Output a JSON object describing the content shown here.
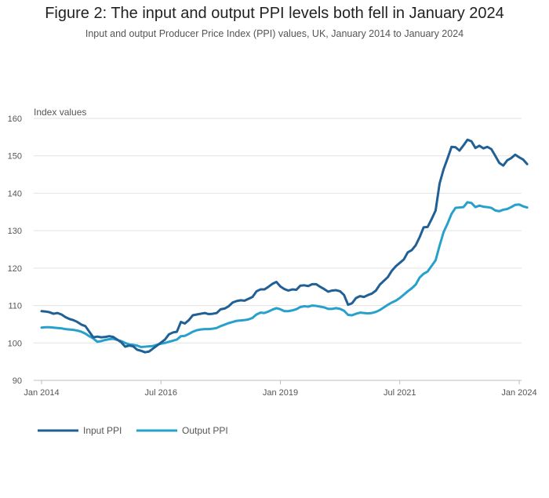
{
  "title": "Figure 2: The input and output PPI levels both fell in January 2024",
  "subtitle": "Input and output Producer Price Index (PPI) values, UK, January 2014 to January 2024",
  "colors": {
    "input": "#206095",
    "output": "#27a0cc",
    "grid": "#e2e2e2",
    "axis": "#bdbdbd"
  },
  "chart_data": {
    "type": "line",
    "title": "Figure 2: The input and output PPI levels both fell in January 2024",
    "ylabel": "Index values",
    "xlabel": "",
    "ylim": [
      90,
      160
    ],
    "yticks": [
      90,
      100,
      110,
      120,
      130,
      140,
      150,
      160
    ],
    "x_start": "Jan 2014",
    "x_end": "Jan 2024",
    "n_points": 121,
    "xticks": [
      {
        "label": "Jan 2014",
        "index": 0
      },
      {
        "label": "Jul 2016",
        "index": 30
      },
      {
        "label": "Jan 2019",
        "index": 60
      },
      {
        "label": "Jul 2021",
        "index": 90
      },
      {
        "label": "Jan 2024",
        "index": 120
      }
    ],
    "legend": [
      "Input PPI",
      "Output PPI"
    ],
    "series": [
      {
        "name": "Input PPI",
        "values": [
          108.5,
          108.4,
          108.2,
          107.8,
          108.0,
          107.6,
          106.9,
          106.4,
          106.1,
          105.6,
          104.9,
          104.5,
          103.0,
          101.5,
          101.7,
          101.5,
          101.6,
          101.8,
          101.6,
          100.9,
          100.2,
          99.0,
          99.3,
          99.1,
          98.2,
          97.9,
          97.5,
          97.7,
          98.5,
          99.3,
          100.1,
          100.9,
          102.3,
          102.8,
          103.0,
          105.6,
          105.2,
          106.1,
          107.4,
          107.6,
          107.8,
          108.0,
          107.7,
          107.8,
          108.0,
          109.0,
          109.2,
          109.8,
          110.8,
          111.2,
          111.4,
          111.3,
          111.8,
          112.3,
          113.8,
          114.3,
          114.3,
          115.0,
          115.8,
          116.3,
          115.1,
          114.4,
          114.0,
          114.3,
          114.2,
          115.3,
          115.4,
          115.2,
          115.7,
          115.7,
          115.0,
          114.4,
          113.7,
          114.0,
          114.1,
          113.8,
          112.8,
          110.2,
          110.6,
          112.0,
          112.5,
          112.3,
          112.8,
          113.2,
          114.0,
          115.6,
          116.6,
          117.6,
          119.3,
          120.5,
          121.4,
          122.3,
          124.2,
          124.8,
          126.1,
          128.3,
          130.9,
          131.0,
          133.1,
          135.4,
          142.6,
          146.4,
          149.3,
          152.4,
          152.3,
          151.4,
          152.8,
          154.3,
          153.9,
          152.1,
          152.7,
          152.0,
          152.4,
          151.8,
          150.0,
          148.1,
          147.4,
          148.8,
          149.4,
          150.3,
          149.6,
          149.0,
          147.8
        ]
      },
      {
        "name": "Output PPI",
        "values": [
          104.1,
          104.2,
          104.2,
          104.1,
          104.0,
          103.9,
          103.7,
          103.6,
          103.5,
          103.3,
          103.0,
          102.5,
          101.8,
          101.2,
          100.3,
          100.5,
          100.8,
          101.0,
          101.1,
          100.8,
          100.5,
          100.0,
          99.6,
          99.5,
          99.3,
          98.9,
          99.0,
          99.1,
          99.2,
          99.5,
          99.8,
          100.0,
          100.3,
          100.6,
          100.9,
          101.8,
          101.9,
          102.4,
          103.0,
          103.4,
          103.6,
          103.7,
          103.7,
          103.8,
          104.0,
          104.5,
          104.9,
          105.3,
          105.6,
          105.9,
          106.0,
          106.1,
          106.3,
          106.7,
          107.6,
          108.1,
          108.0,
          108.4,
          108.9,
          109.3,
          109.0,
          108.5,
          108.5,
          108.7,
          109.0,
          109.6,
          109.8,
          109.7,
          110.0,
          109.9,
          109.7,
          109.5,
          109.1,
          109.1,
          109.3,
          109.1,
          108.6,
          107.5,
          107.4,
          107.8,
          108.1,
          108.0,
          107.9,
          108.0,
          108.3,
          108.8,
          109.5,
          110.2,
          110.8,
          111.3,
          112.0,
          112.9,
          113.8,
          114.6,
          115.6,
          117.5,
          118.5,
          119.1,
          120.6,
          122.1,
          126.0,
          129.6,
          131.9,
          134.5,
          136.1,
          136.2,
          136.3,
          137.6,
          137.4,
          136.3,
          136.7,
          136.4,
          136.3,
          136.1,
          135.4,
          135.2,
          135.6,
          135.8,
          136.3,
          136.9,
          137.0,
          136.5,
          136.2
        ]
      }
    ]
  }
}
